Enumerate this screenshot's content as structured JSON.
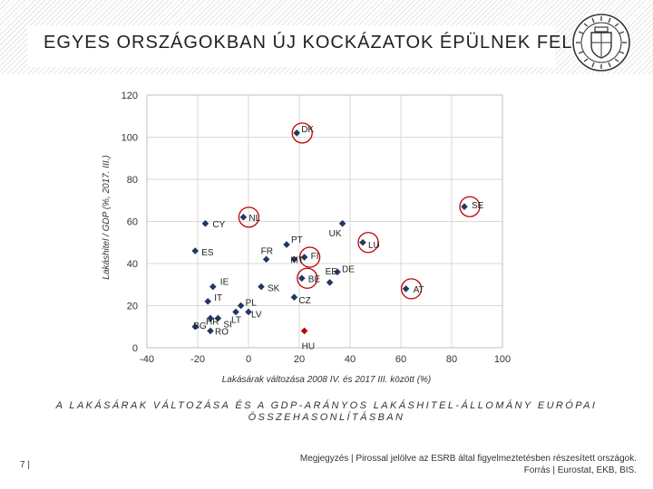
{
  "page": {
    "title": "EGYES ORSZÁGOKBAN ÚJ KOCKÁZATOK ÉPÜLNEK FEL",
    "caption": "A LAKÁSÁRAK VÁLTOZÁSA ÉS A GDP-ARÁNYOS LAKÁSHITEL-ÁLLOMÁNY EURÓPAI ÖSSZEHASONLÍTÁSBAN",
    "page_number": "7 |",
    "note": "Megjegyzés | Pirossal jelölve az ESRB által figyelmeztetésben részesített országok.",
    "source": "Forrás | Eurostat, EKB, BIS.",
    "logo_icon": "central-bank-seal-icon"
  },
  "colors": {
    "point": "#1f3864",
    "highlight_point": "#c00000",
    "circle": "#c00000",
    "grid": "#d9d9d9"
  },
  "chart_data": {
    "type": "scatter",
    "title": "",
    "xlabel": "Lakásárak változása 2008 IV. és 2017 III. között (%)",
    "ylabel": "Lakáshitel / GDP (%, 2017. III.)",
    "xlim": [
      -40,
      100
    ],
    "ylim": [
      0,
      120
    ],
    "xticks": [
      -40,
      -20,
      0,
      20,
      40,
      60,
      80,
      100
    ],
    "yticks": [
      0,
      20,
      40,
      60,
      80,
      100,
      120
    ],
    "grid": true,
    "legend": "none",
    "points": [
      {
        "label": "DK",
        "x": 19,
        "y": 102,
        "circled": true
      },
      {
        "label": "SE",
        "x": 85,
        "y": 67,
        "circled": true
      },
      {
        "label": "CY",
        "x": -17,
        "y": 59,
        "circled": false
      },
      {
        "label": "NL",
        "x": -2,
        "y": 62,
        "circled": true
      },
      {
        "label": "UK",
        "x": 37,
        "y": 59,
        "circled": false
      },
      {
        "label": "LU",
        "x": 45,
        "y": 50,
        "circled": true
      },
      {
        "label": "ES",
        "x": -21,
        "y": 46,
        "circled": false
      },
      {
        "label": "FR",
        "x": 7,
        "y": 42,
        "circled": false
      },
      {
        "label": "PT",
        "x": 15,
        "y": 49,
        "circled": false
      },
      {
        "label": "FI",
        "x": 22,
        "y": 43,
        "circled": true
      },
      {
        "label": "MT",
        "x": 18,
        "y": 42,
        "circled": false
      },
      {
        "label": "EE",
        "x": 32,
        "y": 31,
        "circled": false
      },
      {
        "label": "DE",
        "x": 35,
        "y": 36,
        "circled": false
      },
      {
        "label": "BE",
        "x": 21,
        "y": 33,
        "circled": true
      },
      {
        "label": "AT",
        "x": 62,
        "y": 28,
        "circled": true
      },
      {
        "label": "IE",
        "x": -14,
        "y": 29,
        "circled": false
      },
      {
        "label": "SK",
        "x": 5,
        "y": 29,
        "circled": false
      },
      {
        "label": "IT",
        "x": -16,
        "y": 22,
        "circled": false
      },
      {
        "label": "CZ",
        "x": 18,
        "y": 24,
        "circled": false
      },
      {
        "label": "PL",
        "x": -3,
        "y": 20,
        "circled": false
      },
      {
        "label": "HR",
        "x": -15,
        "y": 14,
        "circled": false
      },
      {
        "label": "LT",
        "x": -5,
        "y": 17,
        "circled": false
      },
      {
        "label": "LV",
        "x": 0,
        "y": 17,
        "circled": false
      },
      {
        "label": "SI",
        "x": -12,
        "y": 14,
        "circled": false
      },
      {
        "label": "BG",
        "x": -21,
        "y": 10,
        "circled": false
      },
      {
        "label": "RO",
        "x": -15,
        "y": 8,
        "circled": false
      },
      {
        "label": "HU",
        "x": 22,
        "y": 8,
        "circled": false,
        "highlight": true
      }
    ]
  }
}
